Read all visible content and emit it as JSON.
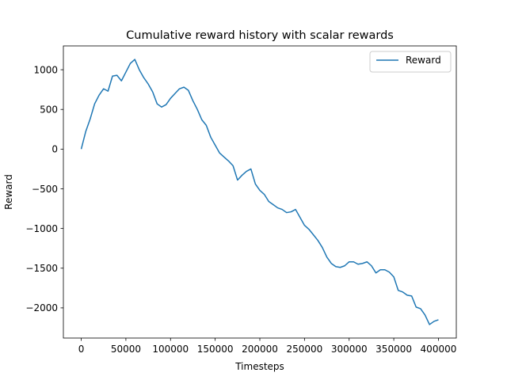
{
  "chart_data": {
    "type": "line",
    "title": "Cumulative reward history with scalar rewards",
    "xlabel": "Timesteps",
    "ylabel": "Reward",
    "xlim": [
      -20000,
      420000
    ],
    "ylim": [
      -2380,
      1300
    ],
    "x_ticks": [
      0,
      50000,
      100000,
      150000,
      200000,
      250000,
      300000,
      350000,
      400000
    ],
    "x_tick_labels": [
      "0",
      "50000",
      "100000",
      "150000",
      "200000",
      "250000",
      "300000",
      "350000",
      "400000"
    ],
    "y_ticks": [
      1000,
      500,
      0,
      -500,
      -1000,
      -1500,
      -2000
    ],
    "y_tick_labels": [
      "1000",
      "500",
      "0",
      "−500",
      "−1000",
      "−1500",
      "−2000"
    ],
    "grid": false,
    "legend_position": "upper right",
    "series": [
      {
        "name": "Reward",
        "color": "#1f77b4",
        "x": [
          0,
          5000,
          10000,
          15000,
          20000,
          25000,
          30000,
          35000,
          40000,
          45000,
          50000,
          55000,
          60000,
          65000,
          70000,
          75000,
          80000,
          85000,
          90000,
          95000,
          100000,
          105000,
          110000,
          115000,
          120000,
          125000,
          130000,
          135000,
          140000,
          145000,
          150000,
          155000,
          160000,
          165000,
          170000,
          175000,
          180000,
          185000,
          190000,
          195000,
          200000,
          205000,
          210000,
          215000,
          220000,
          225000,
          230000,
          235000,
          240000,
          245000,
          250000,
          255000,
          260000,
          265000,
          270000,
          275000,
          280000,
          285000,
          290000,
          295000,
          300000,
          305000,
          310000,
          315000,
          320000,
          325000,
          330000,
          335000,
          340000,
          345000,
          350000,
          355000,
          360000,
          365000,
          370000,
          375000,
          380000,
          385000,
          390000,
          395000,
          400000
        ],
        "y": [
          0,
          220,
          380,
          570,
          680,
          760,
          730,
          920,
          930,
          860,
          970,
          1080,
          1130,
          1000,
          900,
          820,
          720,
          570,
          530,
          560,
          640,
          700,
          760,
          780,
          740,
          610,
          500,
          370,
          300,
          150,
          50,
          -50,
          -100,
          -150,
          -210,
          -390,
          -330,
          -280,
          -250,
          -440,
          -520,
          -570,
          -660,
          -700,
          -740,
          -760,
          -800,
          -790,
          -760,
          -860,
          -960,
          -1010,
          -1080,
          -1150,
          -1240,
          -1360,
          -1440,
          -1480,
          -1490,
          -1470,
          -1420,
          -1420,
          -1450,
          -1440,
          -1420,
          -1470,
          -1560,
          -1520,
          -1520,
          -1550,
          -1610,
          -1780,
          -1800,
          -1840,
          -1850,
          -1990,
          -2010,
          -2090,
          -2210,
          -2170,
          -2150
        ]
      }
    ]
  }
}
